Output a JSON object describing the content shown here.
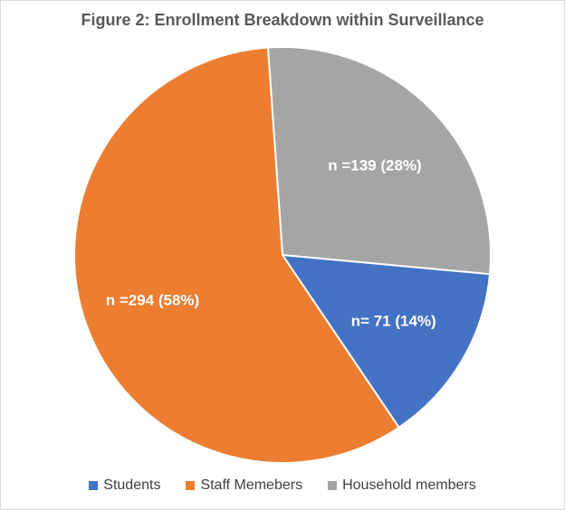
{
  "chart_data": {
    "type": "pie",
    "title": "Figure 2: Enrollment Breakdown within Surveillance",
    "slices": [
      {
        "name": "Students",
        "value": 71,
        "percent": 14,
        "label": "n= 71 (14%)",
        "color": "#4472c4"
      },
      {
        "name": "Staff Memebers",
        "value": 294,
        "percent": 58,
        "label": "n =294 (58%)",
        "color": "#ed7d31"
      },
      {
        "name": "Household members",
        "value": 139,
        "percent": 28,
        "label": "n =139 (28%)",
        "color": "#a5a5a5"
      }
    ],
    "legend_position": "bottom"
  }
}
